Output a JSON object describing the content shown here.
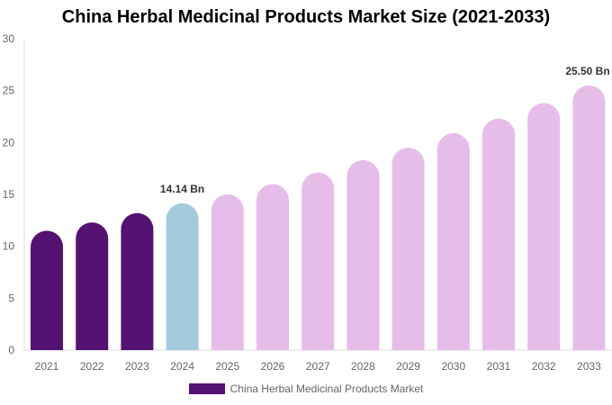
{
  "chart_data": {
    "type": "bar",
    "title": "China Herbal Medicinal Products Market Size (2021-2033)",
    "categories": [
      "2021",
      "2022",
      "2023",
      "2024",
      "2025",
      "2026",
      "2027",
      "2028",
      "2029",
      "2030",
      "2031",
      "2032",
      "2033"
    ],
    "values": [
      11.5,
      12.3,
      13.2,
      14.14,
      15.0,
      16.0,
      17.1,
      18.3,
      19.5,
      20.9,
      22.3,
      23.8,
      25.5
    ],
    "ylim": [
      0,
      30
    ],
    "yticks": [
      0,
      5,
      10,
      15,
      20,
      25,
      30
    ],
    "data_labels": {
      "2024": "14.14 Bn",
      "2033": "25.50 Bn"
    },
    "colors": {
      "historical": "#541272",
      "base_year": "#a3c9dd",
      "forecast": "#e6bde9"
    },
    "legend": {
      "label": "China Herbal Medicinal Products Market",
      "color": "#541272",
      "placement": "bottom"
    },
    "grid": false
  }
}
